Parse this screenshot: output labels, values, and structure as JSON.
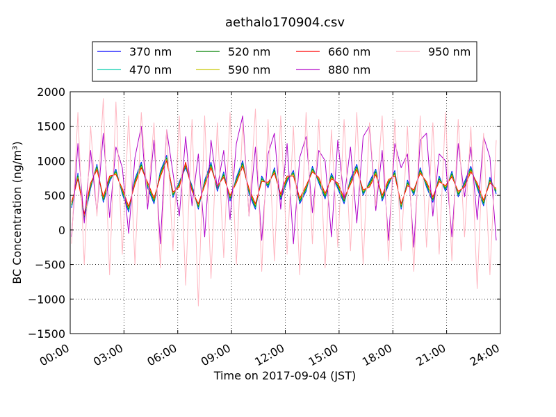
{
  "chart_data": {
    "type": "line",
    "title": "aethalo170904.csv",
    "xlabel": "Time on 2017-09-04 (JST)",
    "ylabel": "BC Concentration (ng/m³)",
    "x_ticks": [
      "00:00",
      "03:00",
      "06:00",
      "09:00",
      "12:00",
      "15:00",
      "18:00",
      "21:00",
      "24:00"
    ],
    "y_ticks": [
      2000,
      1500,
      1000,
      500,
      0,
      -500,
      -1000,
      -1500
    ],
    "xlim": [
      "00:00",
      "24:00"
    ],
    "ylim": [
      -1500,
      2000
    ],
    "grid": true,
    "legend_position": "top-center",
    "series": [
      {
        "name": "370 nm",
        "color": "#0000ff",
        "values": [
          320,
          820,
          150,
          600,
          950,
          400,
          700,
          880,
          520,
          260,
          740,
          980,
          610,
          380,
          850,
          1080,
          470,
          700,
          900,
          640,
          300,
          720,
          980,
          560,
          840,
          420,
          760,
          1000,
          520,
          300,
          780,
          610,
          900,
          440,
          700,
          860,
          380,
          560,
          920,
          680,
          450,
          820,
          600,
          380,
          740,
          950,
          500,
          700,
          880,
          420,
          650,
          860,
          300,
          720,
          500,
          900,
          620,
          400,
          780,
          560,
          850,
          480,
          700,
          920,
          600,
          350,
          760,
          520
        ]
      },
      {
        "name": "470 nm",
        "color": "#00ccaa",
        "values": [
          340,
          800,
          170,
          620,
          930,
          420,
          720,
          860,
          540,
          280,
          720,
          960,
          630,
          400,
          830,
          1060,
          490,
          680,
          920,
          620,
          320,
          700,
          960,
          580,
          820,
          440,
          740,
          980,
          540,
          320,
          760,
          630,
          880,
          460,
          720,
          840,
          400,
          580,
          900,
          700,
          470,
          800,
          620,
          400,
          720,
          930,
          520,
          680,
          860,
          440,
          670,
          840,
          320,
          700,
          520,
          880,
          640,
          420,
          760,
          580,
          830,
          500,
          680,
          900,
          620,
          370,
          740,
          540
        ]
      },
      {
        "name": "520 nm",
        "color": "#008000",
        "values": [
          360,
          780,
          190,
          640,
          910,
          440,
          740,
          840,
          560,
          300,
          700,
          940,
          650,
          420,
          810,
          1040,
          510,
          660,
          940,
          600,
          340,
          680,
          940,
          600,
          800,
          460,
          720,
          960,
          560,
          340,
          740,
          650,
          860,
          480,
          740,
          820,
          420,
          600,
          880,
          720,
          490,
          780,
          640,
          420,
          700,
          910,
          540,
          660,
          840,
          460,
          690,
          820,
          340,
          680,
          540,
          860,
          660,
          440,
          740,
          600,
          810,
          520,
          660,
          880,
          640,
          390,
          720,
          560
        ]
      },
      {
        "name": "590 nm",
        "color": "#c8c800",
        "values": [
          380,
          760,
          210,
          660,
          890,
          460,
          760,
          820,
          580,
          320,
          680,
          920,
          670,
          440,
          790,
          1020,
          530,
          640,
          960,
          580,
          360,
          660,
          920,
          620,
          780,
          480,
          700,
          940,
          580,
          360,
          720,
          670,
          840,
          500,
          760,
          800,
          440,
          620,
          860,
          740,
          510,
          760,
          660,
          440,
          680,
          890,
          560,
          640,
          820,
          480,
          710,
          800,
          360,
          660,
          560,
          840,
          680,
          460,
          720,
          620,
          790,
          540,
          640,
          860,
          660,
          410,
          700,
          580
        ]
      },
      {
        "name": "660 nm",
        "color": "#ff0000",
        "values": [
          400,
          740,
          230,
          680,
          870,
          480,
          780,
          800,
          600,
          340,
          660,
          900,
          690,
          460,
          770,
          1000,
          550,
          620,
          980,
          560,
          380,
          640,
          900,
          640,
          760,
          500,
          680,
          920,
          600,
          380,
          700,
          690,
          820,
          520,
          780,
          780,
          460,
          640,
          840,
          760,
          530,
          740,
          680,
          460,
          660,
          870,
          580,
          620,
          800,
          500,
          730,
          780,
          380,
          640,
          580,
          820,
          700,
          480,
          700,
          640,
          770,
          560,
          620,
          840,
          680,
          430,
          680,
          600
        ]
      },
      {
        "name": "880 nm",
        "color": "#b000c8",
        "values": [
          -100,
          1250,
          100,
          1150,
          250,
          1400,
          180,
          1200,
          900,
          -50,
          1050,
          1500,
          300,
          1300,
          -200,
          1450,
          820,
          200,
          1350,
          350,
          1100,
          -100,
          1300,
          600,
          1150,
          150,
          1250,
          1650,
          200,
          1200,
          -150,
          1100,
          1400,
          300,
          1250,
          -200,
          1050,
          1350,
          250,
          1150,
          1000,
          -100,
          1300,
          450,
          1200,
          100,
          1350,
          1500,
          280,
          1150,
          -150,
          1250,
          900,
          1100,
          -250,
          1300,
          1400,
          200,
          1100,
          1000,
          -100,
          1250,
          480,
          1200,
          150,
          1350,
          1050,
          -150
        ]
      },
      {
        "name": "950 nm",
        "color": "#ffb6c1",
        "values": [
          -200,
          1700,
          -500,
          1500,
          200,
          1900,
          -650,
          1850,
          -350,
          1650,
          -500,
          1700,
          400,
          1550,
          -550,
          1450,
          -300,
          1650,
          -800,
          1600,
          -1100,
          1650,
          -700,
          1550,
          -400,
          1700,
          -500,
          1550,
          200,
          1750,
          -600,
          1600,
          -450,
          1650,
          -350,
          1500,
          -650,
          1700,
          -200,
          1600,
          -550,
          1450,
          -250,
          1600,
          -300,
          1700,
          -500,
          1550,
          350,
          1650,
          -450,
          1600,
          -300,
          1500,
          -600,
          1650,
          -250,
          1550,
          -350,
          1700,
          -450,
          1600,
          -100,
          1500,
          -850,
          1400,
          -650,
          1300
        ]
      }
    ]
  }
}
